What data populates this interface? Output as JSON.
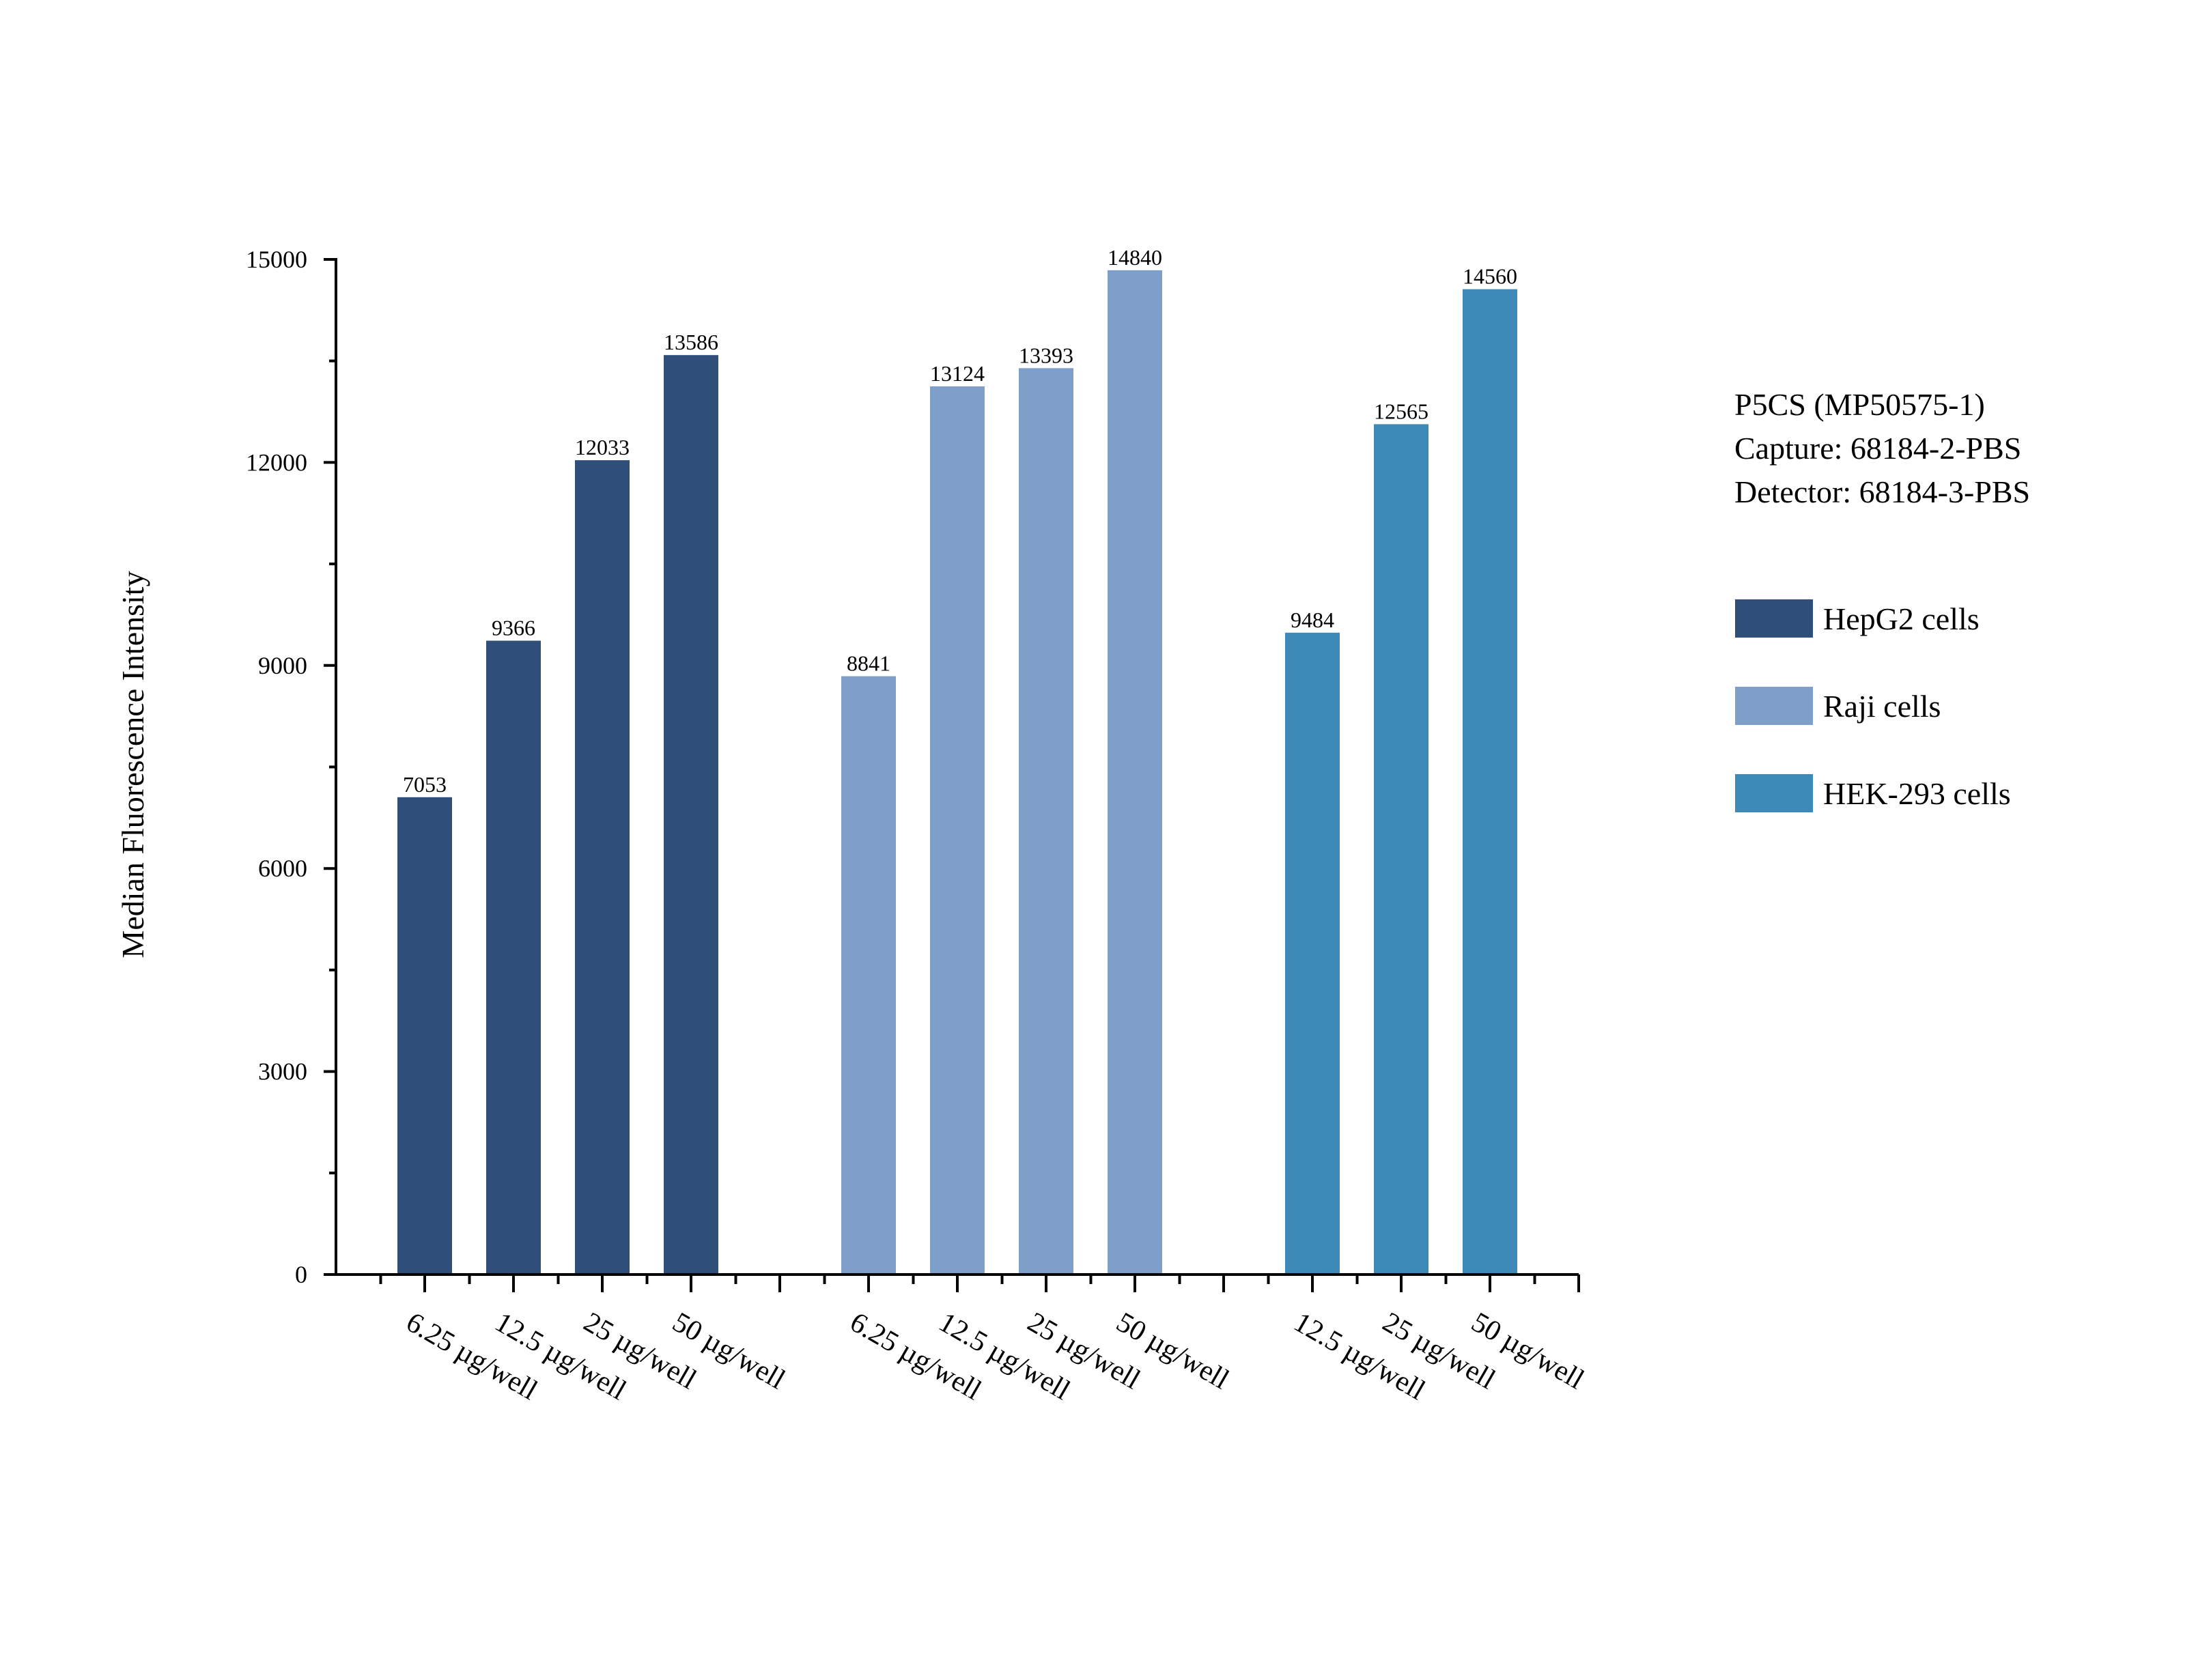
{
  "chart_data": {
    "type": "bar",
    "title": "",
    "ylabel": "Median Fluorescence Intensity",
    "xlabel": "",
    "ylim": [
      0,
      15000
    ],
    "yticks": [
      0,
      3000,
      6000,
      9000,
      12000,
      15000
    ],
    "y_minor_step": 1500,
    "annotation": [
      "P5CS (MP50575-1)",
      "Capture: 68184-2-PBS",
      "Detector: 68184-3-PBS"
    ],
    "legend_position": "right",
    "series": [
      {
        "name": "HepG2 cells",
        "color": "#2f4f7a",
        "categories": [
          "6.25 µg/well",
          "12.5 µg/well",
          "25 µg/well",
          "50 µg/well"
        ],
        "values": [
          7053,
          9366,
          12033,
          13586
        ],
        "labels": [
          "7053",
          "9366",
          "12033",
          "13586"
        ]
      },
      {
        "name": "Raji cells",
        "color": "#7f9fcb",
        "categories": [
          "6.25 µg/well",
          "12.5 µg/well",
          "25 µg/well",
          "50 µg/well"
        ],
        "values": [
          8841,
          13124,
          13393,
          14840
        ],
        "labels": [
          "8841",
          "13124",
          "13393",
          "14840"
        ]
      },
      {
        "name": "HEK-293 cells",
        "color": "#3d8ab8",
        "categories": [
          "12.5 µg/well",
          "25 µg/well",
          "50 µg/well"
        ],
        "values": [
          9484,
          12565,
          14560
        ],
        "labels": [
          "9484",
          "12565",
          "14560"
        ]
      }
    ]
  }
}
